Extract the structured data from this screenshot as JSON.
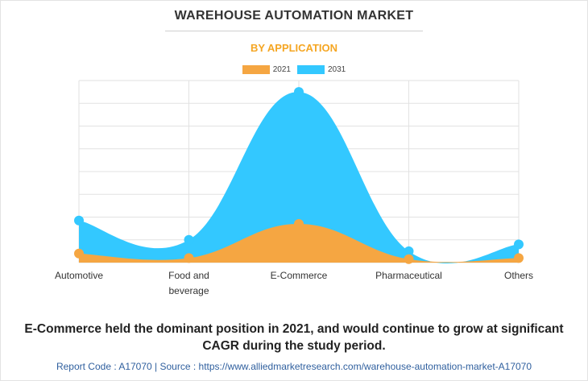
{
  "header": {
    "title": "WAREHOUSE AUTOMATION MARKET",
    "subtitle": "BY APPLICATION"
  },
  "colors": {
    "series_2021": "#f5a642",
    "series_2031": "#33c8ff",
    "subtitle": "#f5a623",
    "grid": "#e2e2e2",
    "footer": "#2f5f9e"
  },
  "chart_data": {
    "type": "area",
    "categories": [
      "Automotive",
      "Food and beverage",
      "E-Commerce",
      "Pharmaceutical",
      "Others"
    ],
    "category_lines": [
      [
        "Automotive"
      ],
      [
        "Food and",
        "beverage"
      ],
      [
        "E-Commerce"
      ],
      [
        "Pharmaceutical"
      ],
      [
        "Others"
      ]
    ],
    "series": [
      {
        "name": "2021",
        "values": [
          4.0,
          2.0,
          17.0,
          1.5,
          2.0
        ]
      },
      {
        "name": "2031",
        "values": [
          18.5,
          10.0,
          75.0,
          5.0,
          8.0
        ]
      }
    ],
    "ylim": [
      0,
      80
    ],
    "grid": true,
    "legend_position": "top-center",
    "xlabel": "",
    "ylabel": ""
  },
  "note": "E-Commerce held the dominant position in 2021, and would continue to grow at significant CAGR during the study period.",
  "footer": "Report Code : A17070  |  Source : https://www.alliedmarketresearch.com/warehouse-automation-market-A17070"
}
